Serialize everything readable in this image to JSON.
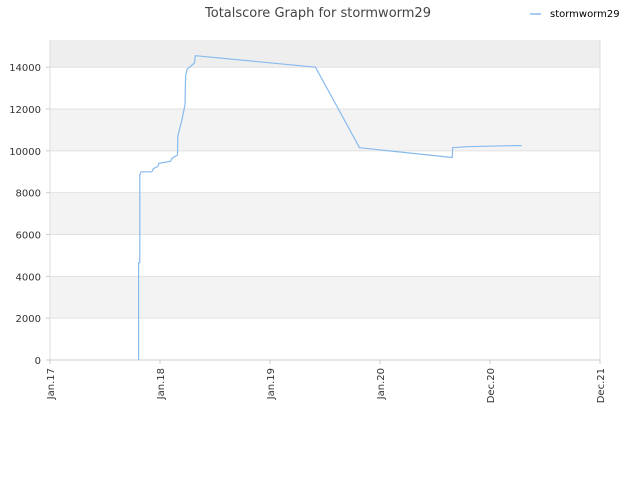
{
  "chart_data": {
    "type": "line",
    "title": "Totalscore Graph for stormworm29",
    "xlabel": "",
    "ylabel": "",
    "x_tick_labels": [
      "Jan.17",
      "Jan.18",
      "Jan.19",
      "Jan.20",
      "Dec.20",
      "Dec.21"
    ],
    "y_tick_labels": [
      "0",
      "2000",
      "4000",
      "6000",
      "8000",
      "10000",
      "12000",
      "14000"
    ],
    "ylim": [
      0,
      15300
    ],
    "xlim": [
      "2017-01-01",
      "2021-12-31"
    ],
    "grid": true,
    "banded_background": true,
    "legend_position": "top-right",
    "series": [
      {
        "name": "stormworm29",
        "color": "#88bbee",
        "points": [
          [
            "2017-10-22",
            0
          ],
          [
            "2017-10-22",
            4650
          ],
          [
            "2017-10-26",
            4650
          ],
          [
            "2017-10-26",
            8850
          ],
          [
            "2017-10-30",
            9000
          ],
          [
            "2017-12-05",
            9000
          ],
          [
            "2017-12-10",
            9150
          ],
          [
            "2017-12-25",
            9250
          ],
          [
            "2017-12-28",
            9400
          ],
          [
            "2018-02-05",
            9500
          ],
          [
            "2018-02-10",
            9650
          ],
          [
            "2018-02-28",
            9800
          ],
          [
            "2018-03-01",
            10700
          ],
          [
            "2018-03-15",
            11500
          ],
          [
            "2018-03-25",
            12200
          ],
          [
            "2018-03-27",
            13600
          ],
          [
            "2018-04-01",
            13900
          ],
          [
            "2018-04-25",
            14200
          ],
          [
            "2018-04-28",
            14550
          ],
          [
            "2019-06-01",
            14000
          ],
          [
            "2019-10-25",
            10150
          ],
          [
            "2020-08-28",
            9680
          ],
          [
            "2020-08-29",
            10150
          ],
          [
            "2020-10-15",
            10200
          ],
          [
            "2021-03-15",
            10250
          ],
          [
            "2021-04-15",
            10250
          ]
        ]
      }
    ]
  }
}
